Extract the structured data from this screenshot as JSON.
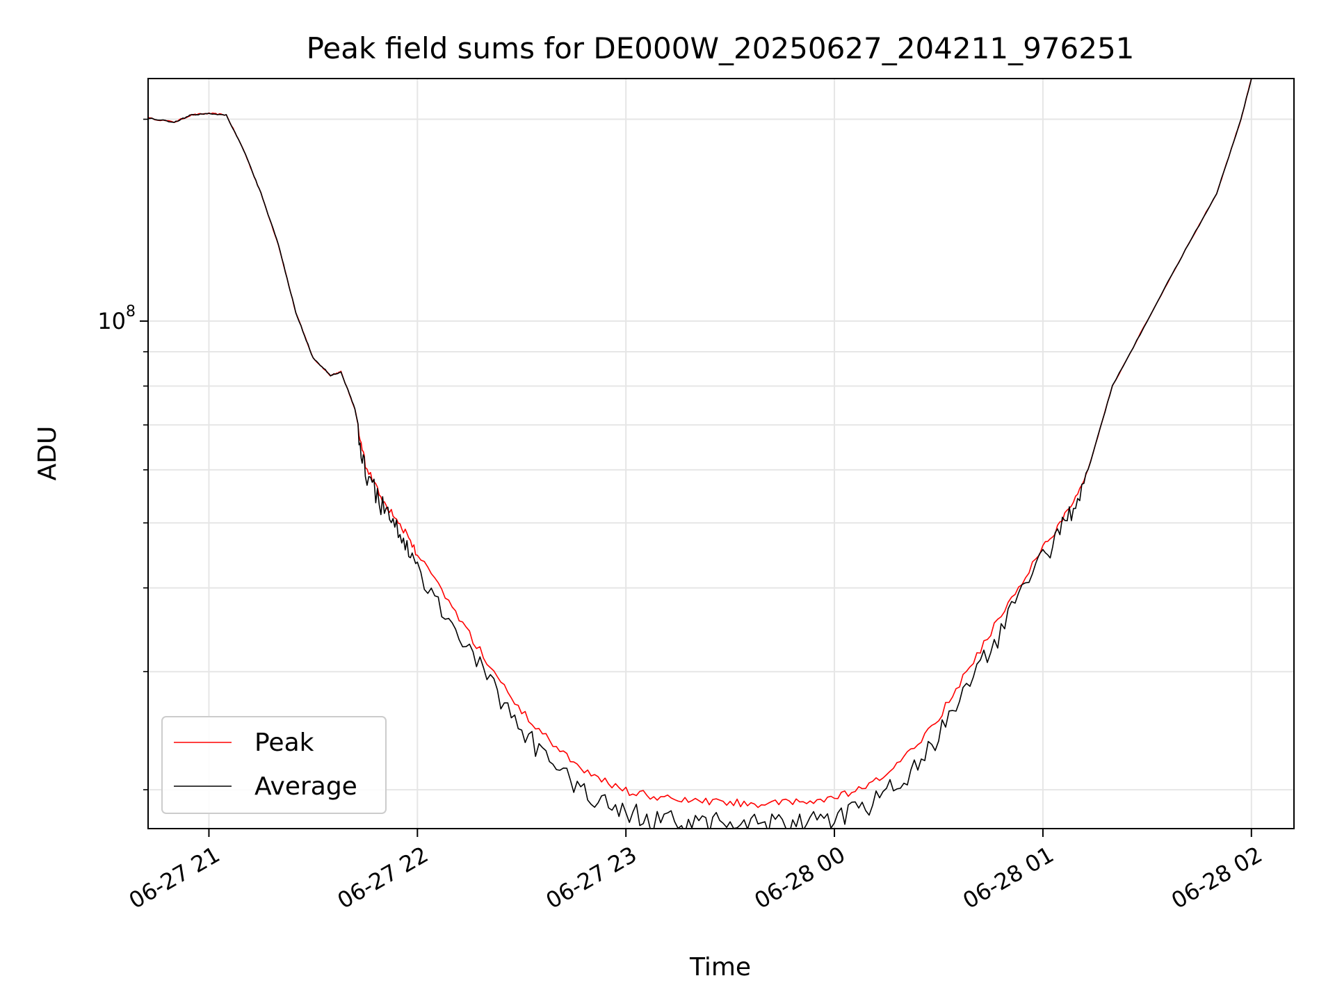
{
  "chart_data": {
    "type": "line",
    "title": "Peak field sums for DE000W_20250627_204211_976251",
    "xlabel": "Time",
    "ylabel": "ADU",
    "x_unit": "time",
    "x_range": [
      "06-27 20:42:30",
      "06-28 02:12:15"
    ],
    "ylim": [
      17500000,
      230000000
    ],
    "y_scale": "log",
    "y_major_ticks": [
      {
        "value": 100000000,
        "base": "10",
        "exponent": "8"
      }
    ],
    "y_minor_ticks": [
      20000000,
      30000000,
      40000000,
      50000000,
      60000000,
      70000000,
      80000000,
      90000000,
      200000000
    ],
    "x_ticks": [
      {
        "value": "06-27 21:00",
        "label": "06-27 21"
      },
      {
        "value": "06-27 22:00",
        "label": "06-27 22"
      },
      {
        "value": "06-27 23:00",
        "label": "06-27 23"
      },
      {
        "value": "06-28 00:00",
        "label": "06-28 00"
      },
      {
        "value": "06-28 01:00",
        "label": "06-28 01"
      },
      {
        "value": "06-28 02:00",
        "label": "06-28 02"
      }
    ],
    "grid": true,
    "legend": {
      "position": "lower-left",
      "entries": [
        {
          "label": "Peak",
          "color": "#ff0000"
        },
        {
          "label": "Average",
          "color": "#000000"
        }
      ]
    },
    "series": [
      {
        "name": "Peak",
        "color": "#ff0000"
      },
      {
        "name": "Average",
        "color": "#000000"
      }
    ],
    "x": [
      "06-27 20:42",
      "06-27 20:50",
      "06-27 20:55",
      "06-27 21:00",
      "06-27 21:05",
      "06-27 21:10",
      "06-27 21:15",
      "06-27 21:20",
      "06-27 21:25",
      "06-27 21:30",
      "06-27 21:35",
      "06-27 21:38",
      "06-27 21:42",
      "06-27 21:45",
      "06-27 21:50",
      "06-27 21:55",
      "06-27 22:00",
      "06-27 22:10",
      "06-27 22:20",
      "06-27 22:30",
      "06-27 22:40",
      "06-27 22:50",
      "06-27 23:00",
      "06-27 23:10",
      "06-27 23:20",
      "06-27 23:30",
      "06-27 23:40",
      "06-27 23:50",
      "06-28 00:00",
      "06-28 00:10",
      "06-28 00:20",
      "06-28 00:30",
      "06-28 00:40",
      "06-28 00:50",
      "06-28 01:00",
      "06-28 01:07",
      "06-28 01:13",
      "06-28 01:20",
      "06-28 01:30",
      "06-28 01:40",
      "06-28 01:50",
      "06-28 01:57",
      "06-28 02:00"
    ],
    "peak_values": [
      201000000,
      198000000,
      203000000,
      204000000,
      203000000,
      180000000,
      155000000,
      130000000,
      103000000,
      88000000,
      83000000,
      84000000,
      74000000,
      62000000,
      55000000,
      50500000,
      45500000,
      38000000,
      31500000,
      26500000,
      23500000,
      21300000,
      20200000,
      19700000,
      19500000,
      19400000,
      19300000,
      19400000,
      19700000,
      20500000,
      22500000,
      26000000,
      31500000,
      38500000,
      46500000,
      52500000,
      60000000,
      80000000,
      100000000,
      125000000,
      155000000,
      200000000,
      230000000
    ],
    "average_values": [
      201000000,
      198000000,
      203000000,
      204000000,
      203000000,
      180000000,
      155000000,
      130000000,
      103000000,
      88000000,
      83000000,
      84000000,
      74000000,
      62000000,
      55000000,
      50000000,
      44500000,
      37000000,
      30500000,
      25500000,
      22500000,
      20400000,
      19300000,
      18800000,
      18600000,
      18500000,
      18400000,
      18500000,
      18800000,
      19600000,
      21500000,
      25000000,
      30500000,
      37500000,
      46000000,
      52500000,
      60000000,
      80000000,
      100000000,
      125000000,
      155000000,
      200000000,
      230000000
    ]
  }
}
